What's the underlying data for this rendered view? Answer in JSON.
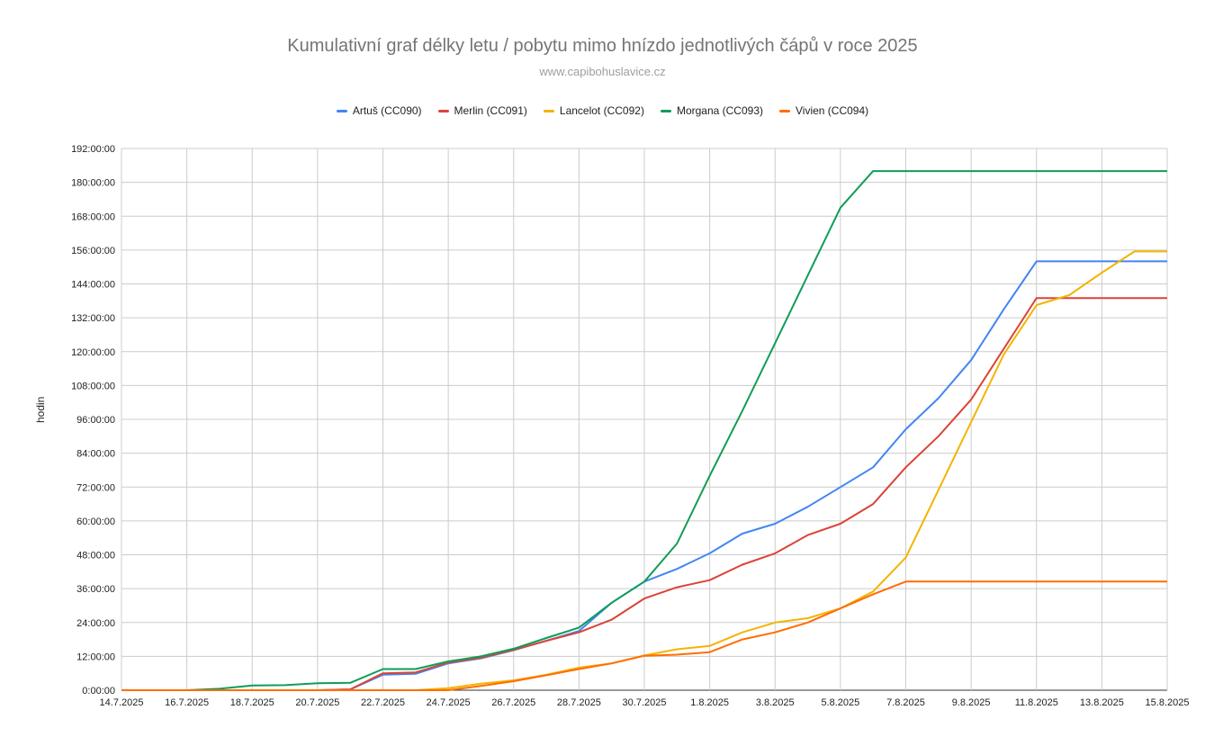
{
  "chart_data": {
    "type": "line",
    "title": "Kumulativní graf délky letu / pobytu mimo hnízdo jednotlivých čápů v roce 2025",
    "subtitle": "www.capibohuslavice.cz",
    "ylabel": "hodin",
    "xlabel": "",
    "ylim": [
      0,
      192
    ],
    "y_ticks": [
      "0:00:00",
      "12:00:00",
      "24:00:00",
      "36:00:00",
      "48:00:00",
      "60:00:00",
      "72:00:00",
      "84:00:00",
      "96:00:00",
      "108:00:00",
      "120:00:00",
      "132:00:00",
      "144:00:00",
      "156:00:00",
      "168:00:00",
      "180:00:00",
      "192:00:00"
    ],
    "x_ticks": [
      "14.7.2025",
      "16.7.2025",
      "18.7.2025",
      "20.7.2025",
      "22.7.2025",
      "24.7.2025",
      "26.7.2025",
      "28.7.2025",
      "30.7.2025",
      "1.8.2025",
      "3.8.2025",
      "5.8.2025",
      "7.8.2025",
      "9.8.2025",
      "11.8.2025",
      "13.8.2025",
      "15.8.2025"
    ],
    "x": [
      "14.7.2025",
      "15.7.2025",
      "16.7.2025",
      "17.7.2025",
      "18.7.2025",
      "19.7.2025",
      "20.7.2025",
      "21.7.2025",
      "22.7.2025",
      "23.7.2025",
      "24.7.2025",
      "25.7.2025",
      "26.7.2025",
      "27.7.2025",
      "28.7.2025",
      "29.7.2025",
      "30.7.2025",
      "31.7.2025",
      "1.8.2025",
      "2.8.2025",
      "3.8.2025",
      "4.8.2025",
      "5.8.2025",
      "6.8.2025",
      "7.8.2025",
      "8.8.2025",
      "9.8.2025",
      "10.8.2025",
      "11.8.2025",
      "12.8.2025",
      "13.8.2025",
      "14.8.2025",
      "15.8.2025"
    ],
    "grid": true,
    "legend_position": "top",
    "series": [
      {
        "name": "Artuš (CC090)",
        "color": "#4285F4",
        "values": [
          0,
          0,
          0,
          0,
          0,
          0,
          0,
          0.3,
          5.5,
          5.8,
          9.5,
          11.3,
          14.2,
          17.5,
          21,
          31,
          38.5,
          43,
          48.5,
          55.5,
          59,
          65,
          72,
          79,
          92.5,
          103.5,
          117,
          135,
          152,
          152,
          152,
          152,
          152
        ]
      },
      {
        "name": "Merlin (CC091)",
        "color": "#DB4437",
        "values": [
          0,
          0,
          0,
          0,
          0,
          0,
          0,
          0.3,
          6,
          6.3,
          9.8,
          11.5,
          14.3,
          17.5,
          20.5,
          25,
          32.5,
          36.5,
          39,
          44.5,
          48.5,
          55,
          59,
          66,
          79,
          90,
          103,
          121,
          139,
          139,
          139,
          139,
          139
        ]
      },
      {
        "name": "Lancelot (CC092)",
        "color": "#F4B400",
        "values": [
          0,
          0,
          0,
          0,
          0,
          0,
          0,
          0,
          0,
          0,
          0.7,
          2.3,
          3.5,
          5.5,
          8,
          9.5,
          12.3,
          14.5,
          15.7,
          20.5,
          24,
          25.5,
          29,
          35,
          47,
          71,
          95,
          119,
          136.5,
          140,
          148,
          155.5,
          155.5
        ]
      },
      {
        "name": "Morgana (CC093)",
        "color": "#0F9D58",
        "values": [
          0,
          0,
          0,
          0.5,
          1.7,
          1.8,
          2.5,
          2.6,
          7.5,
          7.5,
          10.2,
          12,
          14.7,
          18.5,
          22.2,
          31,
          38.5,
          52,
          76,
          99,
          123,
          147,
          171,
          184,
          184,
          184,
          184,
          184,
          184,
          184,
          184,
          184,
          184
        ]
      },
      {
        "name": "Vivien (CC094)",
        "color": "#FF6D00",
        "values": [
          0,
          0,
          0,
          0,
          0,
          0,
          0,
          0,
          0,
          0,
          0,
          1.5,
          3.2,
          5.3,
          7.5,
          9.5,
          12.2,
          12.6,
          13.5,
          18,
          20.5,
          24,
          29,
          34,
          38.5,
          38.5,
          38.5,
          38.5,
          38.5,
          38.5,
          38.5,
          38.5,
          38.5
        ]
      }
    ]
  }
}
